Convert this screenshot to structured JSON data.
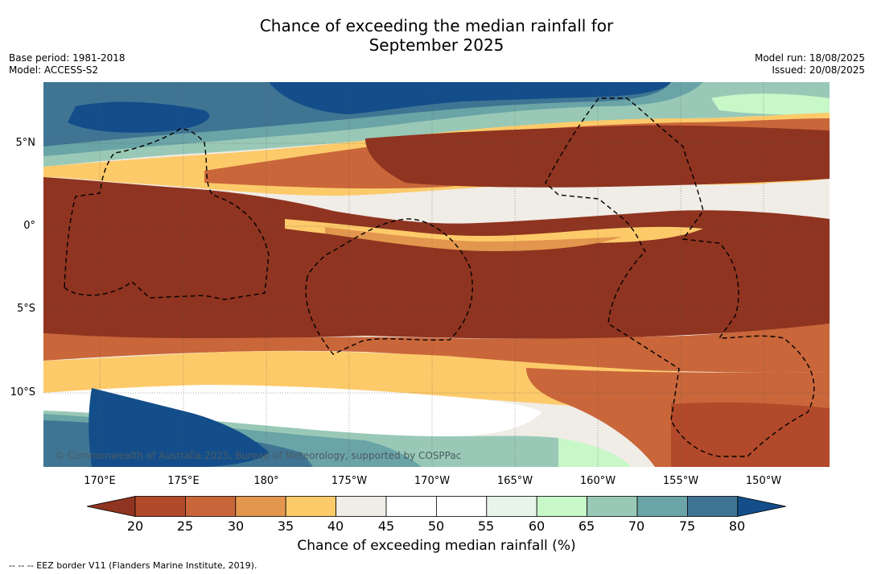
{
  "title_line1": "Chance of exceeding the median rainfall for",
  "title_line2": "September 2025",
  "meta_left": {
    "base_period": "Base period: 1981-2018",
    "model": "Model: ACCESS-S2"
  },
  "meta_right": {
    "model_run": "Model run: 18/08/2025",
    "issued": "Issued: 20/08/2025"
  },
  "map": {
    "lat_labels": [
      "5°N",
      "0°",
      "5°S",
      "10°S"
    ],
    "lon_labels": [
      "170°E",
      "175°E",
      "180°",
      "175°W",
      "170°W",
      "165°W",
      "160°W",
      "155°W",
      "150°W"
    ],
    "copyright": "© Commonwealth of Australia 2025, Bureau of Meteorology, supported by COSPPac"
  },
  "colorbar": {
    "ticks": [
      "20",
      "25",
      "30",
      "35",
      "40",
      "45",
      "50",
      "55",
      "60",
      "65",
      "70",
      "75",
      "80"
    ],
    "colors": [
      "#8f3420",
      "#b2492a",
      "#c9663a",
      "#e3964d",
      "#fdca6a",
      "#f0ece6",
      "#ffffff",
      "#ffffff",
      "#e8f4e8",
      "#c8f7c8",
      "#99c9b6",
      "#6aa4a6",
      "#3f7593",
      "#134e8a"
    ],
    "label": "Chance of exceeding median rainfall (%)"
  },
  "footer": "-- -- -- EEZ border V11 (Flanders Marine Institute, 2019)."
}
